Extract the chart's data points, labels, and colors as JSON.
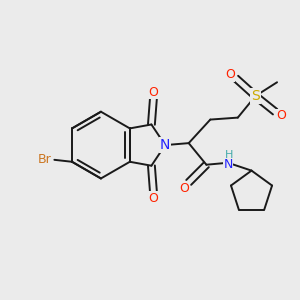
{
  "background_color": "#ebebeb",
  "figsize": [
    3.0,
    3.0
  ],
  "dpi": 100,
  "bond_color": "#1a1a1a",
  "lw": 1.4,
  "atom_colors": {
    "O": "#ff2200",
    "N": "#2222ff",
    "Br": "#cc7722",
    "S": "#ccaa00",
    "H": "#44aaaa"
  }
}
